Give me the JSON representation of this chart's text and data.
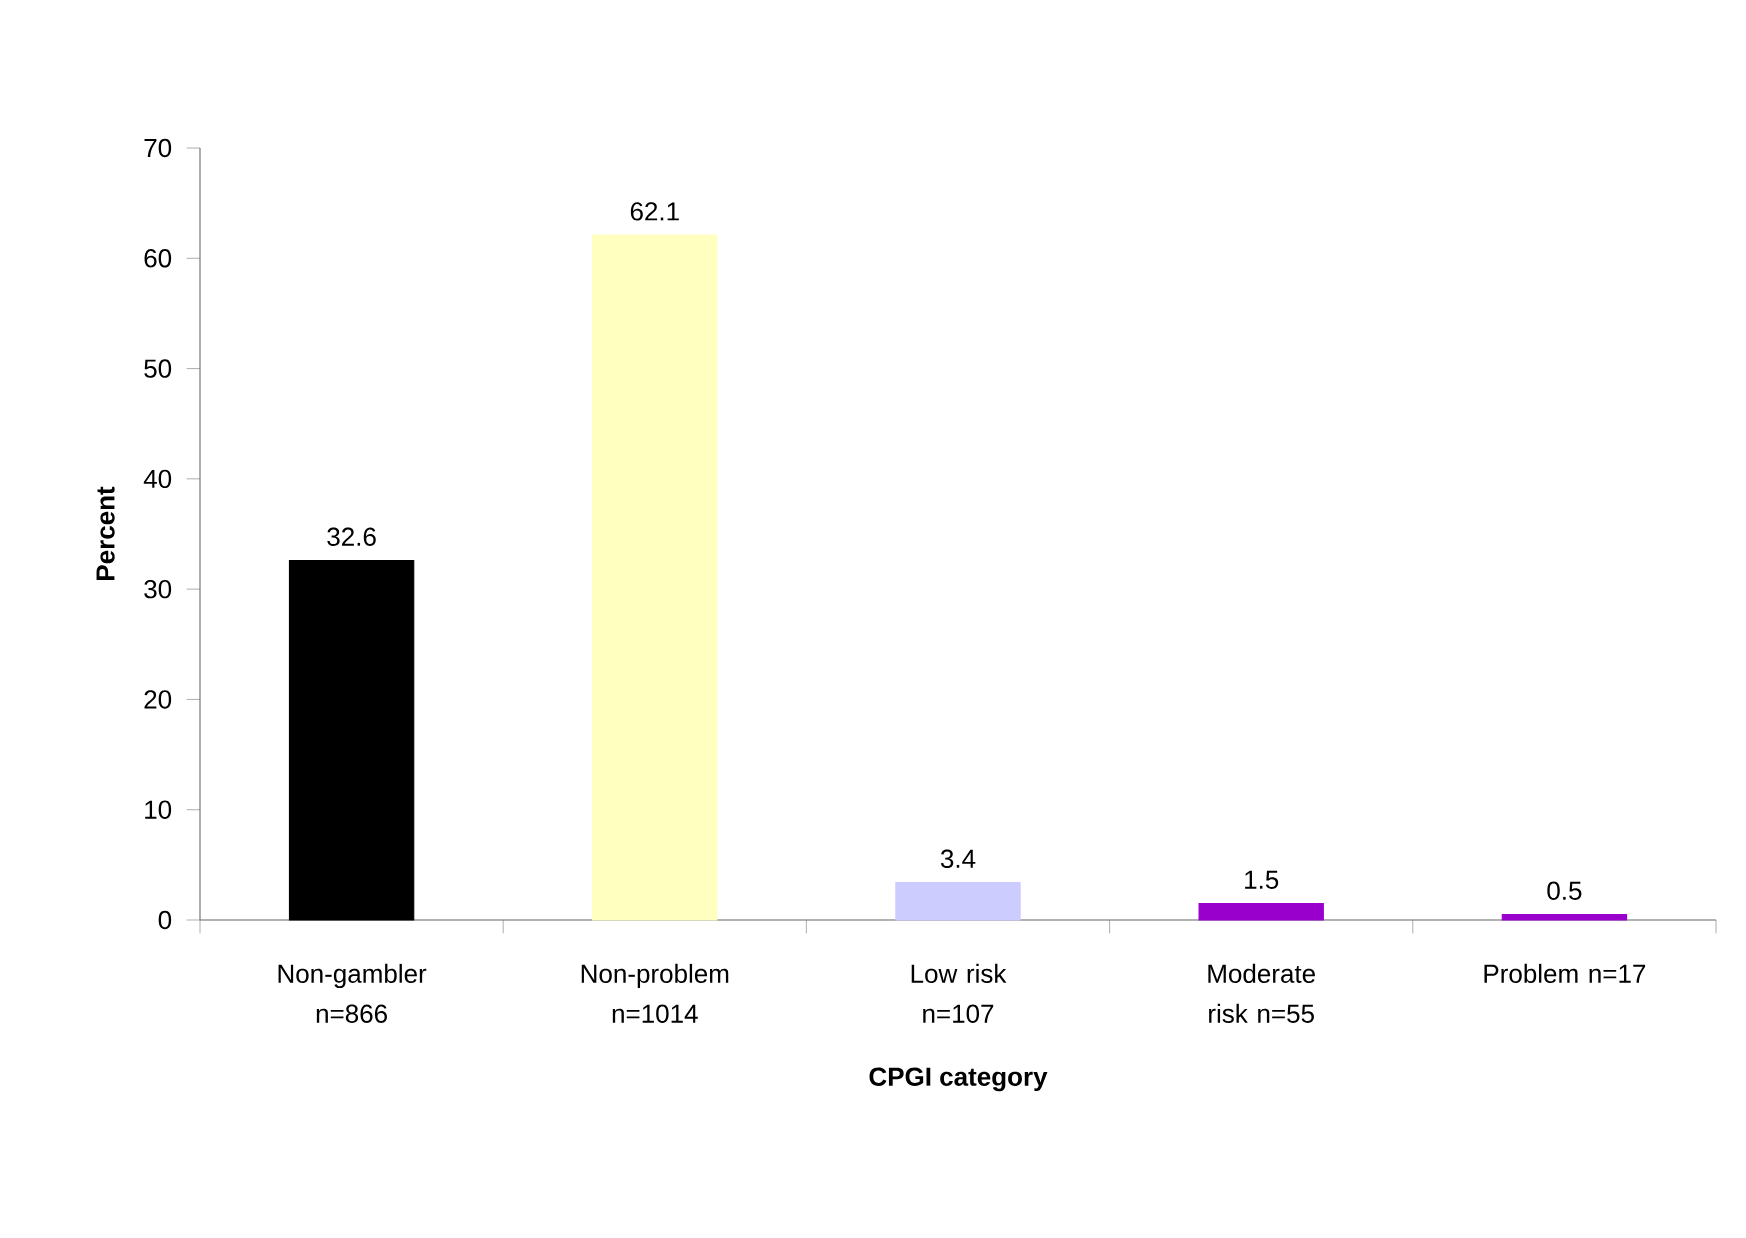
{
  "chart_data": {
    "type": "bar",
    "xlabel": "CPGI category",
    "ylabel": "Percent",
    "categories": [
      "Non-gambler n=866",
      "Non-problem n=1014",
      "Low risk n=107",
      "Moderate risk n=55",
      "Problem n=17"
    ],
    "values": [
      32.6,
      62.1,
      3.4,
      1.5,
      0.5
    ],
    "colors": [
      "#000000",
      "#ffffc0",
      "#ccccff",
      "#9900cc",
      "#9900cc"
    ],
    "ylim": [
      0,
      70
    ],
    "yticks": [
      0,
      10,
      20,
      30,
      40,
      50,
      60,
      70
    ],
    "data_labels": true,
    "grid": false
  }
}
